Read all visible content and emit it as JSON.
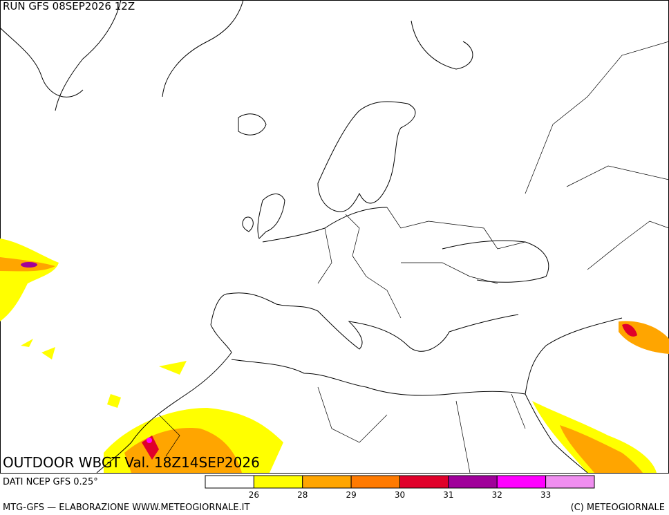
{
  "header": {
    "run": "RUN GFS 08SEP2026 12Z"
  },
  "map": {
    "title": "OUTDOOR WBGT Val. 18Z14SEP2026"
  },
  "footer": {
    "source": "DATI NCEP GFS 0.25°",
    "credit": "MTG-GFS — ELABORAZIONE WWW.METEOGIORNALE.IT",
    "copyright": "(C) METEOGIORNALE"
  },
  "legend": {
    "colors": [
      "#ffffff",
      "#ffff00",
      "#ffa500",
      "#ff7a00",
      "#e0002a",
      "#a0009a",
      "#ff00ff",
      "#f08ef0"
    ],
    "ticks": [
      26,
      28,
      29,
      30,
      31,
      32,
      33
    ]
  }
}
